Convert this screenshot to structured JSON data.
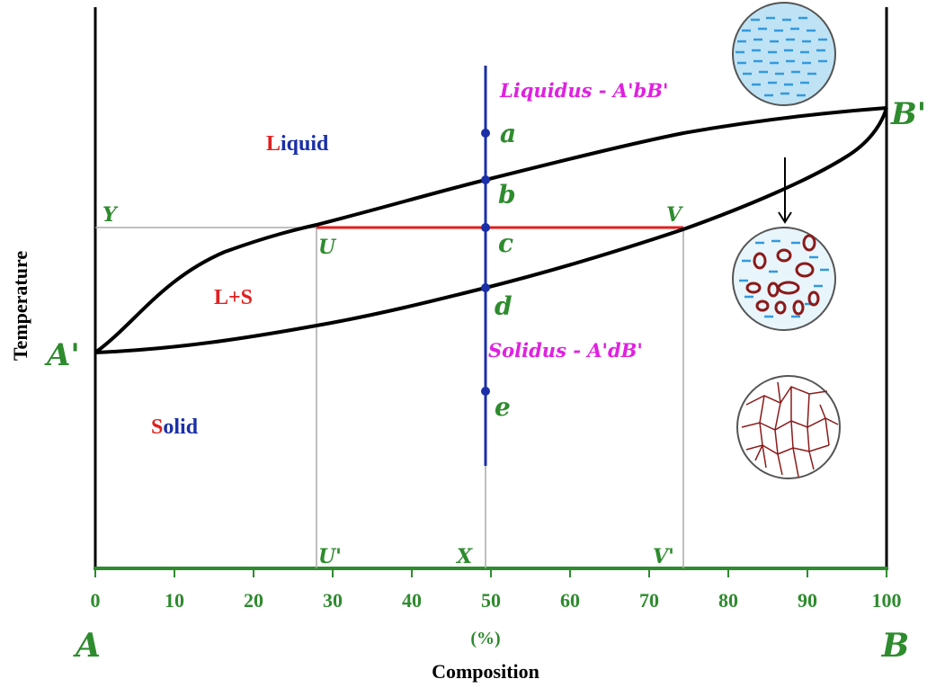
{
  "axes": {
    "ylabel": "Temperature",
    "xlabel": "Composition",
    "unit": "(%)",
    "left_end": "A",
    "right_end": "B",
    "x_ticks": [
      "0",
      "10",
      "20",
      "30",
      "40",
      "50",
      "60",
      "70",
      "80",
      "90",
      "100"
    ]
  },
  "regions": {
    "liquid": {
      "first": "L",
      "rest": "iquid"
    },
    "mix": "L+S",
    "solid": {
      "first": "S",
      "rest": "olid"
    }
  },
  "curves": {
    "liquidus": "Liquidus - A'bB'",
    "solidus": "Solidus - A'dB'",
    "left_point": "A'",
    "right_point": "B'"
  },
  "points": {
    "a": "a",
    "b": "b",
    "c": "c",
    "d": "d",
    "e": "e"
  },
  "tie_line": {
    "y": "Y",
    "u": "U",
    "v": "V",
    "u_prime": "U'",
    "x": "X",
    "v_prime": "V'"
  },
  "colors": {
    "green": "#2e8b2e",
    "magenta": "#e020e0",
    "blue": "#1a2fa8",
    "red": "#e02020",
    "water": "#3399dd",
    "grain": "#8b1a1a"
  }
}
